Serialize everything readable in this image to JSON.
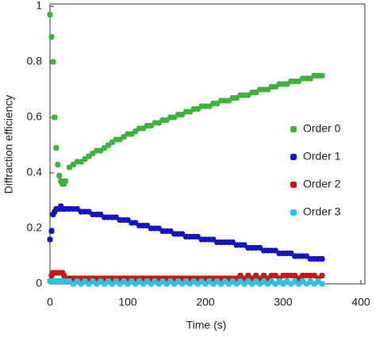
{
  "chart_data": {
    "type": "scatter",
    "xlabel": "Time (s)",
    "ylabel": "Diffraction efficiency",
    "xlim": [
      0,
      400
    ],
    "xticks": [
      0,
      100,
      200,
      300,
      400
    ],
    "ylim": [
      0,
      1
    ],
    "yticks": [
      0,
      0.2,
      0.4,
      0.6,
      0.8,
      1
    ],
    "legend": "right",
    "x": [
      0,
      2,
      4,
      6,
      8,
      10,
      12,
      14,
      16,
      18,
      20,
      25,
      30,
      35,
      40,
      45,
      50,
      55,
      60,
      65,
      70,
      75,
      80,
      85,
      90,
      95,
      100,
      105,
      110,
      115,
      120,
      125,
      130,
      135,
      140,
      145,
      150,
      155,
      160,
      165,
      170,
      175,
      180,
      185,
      190,
      195,
      200,
      205,
      210,
      215,
      220,
      225,
      230,
      235,
      240,
      245,
      250,
      255,
      260,
      265,
      270,
      275,
      280,
      285,
      290,
      295,
      300,
      305,
      310,
      315,
      320,
      325,
      330,
      335,
      340,
      345,
      350
    ],
    "series": [
      {
        "name": "Order 0",
        "color": "#3cb43c",
        "values": [
          0.97,
          0.89,
          0.8,
          0.6,
          0.49,
          0.43,
          0.39,
          0.37,
          0.36,
          0.36,
          0.37,
          0.42,
          0.43,
          0.44,
          0.44,
          0.45,
          0.46,
          0.47,
          0.48,
          0.48,
          0.49,
          0.5,
          0.51,
          0.52,
          0.52,
          0.53,
          0.54,
          0.54,
          0.55,
          0.56,
          0.56,
          0.57,
          0.57,
          0.58,
          0.58,
          0.59,
          0.59,
          0.6,
          0.6,
          0.61,
          0.61,
          0.62,
          0.62,
          0.63,
          0.63,
          0.64,
          0.64,
          0.64,
          0.65,
          0.65,
          0.66,
          0.66,
          0.66,
          0.67,
          0.67,
          0.68,
          0.68,
          0.68,
          0.69,
          0.69,
          0.7,
          0.7,
          0.7,
          0.71,
          0.71,
          0.72,
          0.72,
          0.72,
          0.73,
          0.73,
          0.73,
          0.74,
          0.74,
          0.74,
          0.75,
          0.75,
          0.75
        ]
      },
      {
        "name": "Order 1",
        "color": "#1414c0",
        "values": [
          0.16,
          0.19,
          0.25,
          0.26,
          0.27,
          0.27,
          0.27,
          0.28,
          0.27,
          0.27,
          0.27,
          0.27,
          0.27,
          0.27,
          0.26,
          0.26,
          0.26,
          0.25,
          0.25,
          0.25,
          0.24,
          0.24,
          0.24,
          0.24,
          0.23,
          0.23,
          0.23,
          0.22,
          0.22,
          0.21,
          0.21,
          0.21,
          0.2,
          0.2,
          0.2,
          0.19,
          0.19,
          0.19,
          0.18,
          0.18,
          0.18,
          0.17,
          0.17,
          0.17,
          0.17,
          0.16,
          0.16,
          0.16,
          0.16,
          0.15,
          0.15,
          0.15,
          0.15,
          0.15,
          0.14,
          0.14,
          0.14,
          0.13,
          0.13,
          0.13,
          0.13,
          0.12,
          0.12,
          0.12,
          0.12,
          0.11,
          0.11,
          0.11,
          0.11,
          0.1,
          0.1,
          0.1,
          0.1,
          0.09,
          0.09,
          0.09,
          0.09
        ]
      },
      {
        "name": "Order 2",
        "color": "#d01414",
        "values": [
          0.01,
          0.03,
          0.04,
          0.04,
          0.04,
          0.04,
          0.04,
          0.04,
          0.04,
          0.03,
          0.02,
          0.02,
          0.02,
          0.02,
          0.02,
          0.02,
          0.02,
          0.02,
          0.02,
          0.02,
          0.02,
          0.02,
          0.02,
          0.02,
          0.02,
          0.02,
          0.02,
          0.02,
          0.02,
          0.02,
          0.02,
          0.02,
          0.02,
          0.02,
          0.02,
          0.02,
          0.02,
          0.02,
          0.02,
          0.02,
          0.02,
          0.02,
          0.02,
          0.02,
          0.02,
          0.02,
          0.02,
          0.02,
          0.02,
          0.02,
          0.02,
          0.02,
          0.02,
          0.02,
          0.02,
          0.03,
          0.02,
          0.03,
          0.02,
          0.03,
          0.02,
          0.03,
          0.02,
          0.03,
          0.03,
          0.02,
          0.03,
          0.03,
          0.03,
          0.03,
          0.02,
          0.03,
          0.03,
          0.03,
          0.03,
          0.02,
          0.03
        ]
      },
      {
        "name": "Order 3",
        "color": "#28c4e4",
        "values": [
          0.01,
          0.01,
          0.01,
          0.01,
          0.01,
          0.01,
          0.01,
          0.01,
          0.01,
          0.01,
          0.01,
          0.01,
          0.0,
          0.01,
          0.0,
          0.01,
          0.0,
          0.01,
          0.0,
          0.01,
          0.0,
          0.01,
          0.0,
          0.01,
          0.0,
          0.01,
          0.0,
          0.01,
          0.0,
          0.01,
          0.0,
          0.01,
          0.0,
          0.01,
          0.0,
          0.01,
          0.0,
          0.01,
          0.0,
          0.01,
          0.0,
          0.01,
          0.0,
          0.01,
          0.0,
          0.01,
          0.0,
          0.01,
          0.0,
          0.01,
          0.0,
          0.01,
          0.0,
          0.01,
          0.0,
          0.01,
          0.0,
          0.01,
          0.0,
          0.01,
          0.0,
          0.01,
          0.0,
          0.01,
          0.0,
          0.01,
          0.0,
          0.01,
          0.0,
          0.01,
          0.0,
          0.01,
          0.0,
          0.01,
          0.0,
          0.01,
          0.0
        ]
      }
    ]
  }
}
